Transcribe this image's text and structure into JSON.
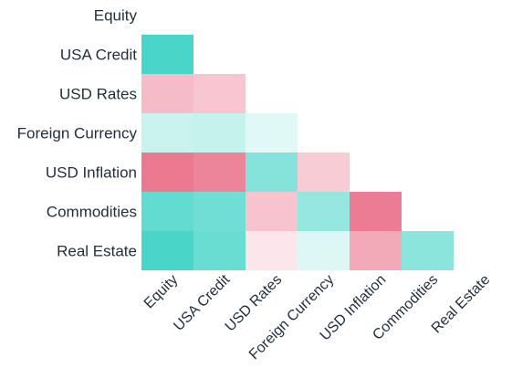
{
  "chart_data": {
    "type": "heatmap",
    "title": "",
    "xlabel": "",
    "ylabel": "",
    "rows": [
      "Equity",
      "USA Credit",
      "USD Rates",
      "Foreign Currency",
      "USD Inflation",
      "Commodities",
      "Real Estate"
    ],
    "columns": [
      "Equity",
      "USA Credit",
      "USD Rates",
      "Foreign Currency",
      "USD Inflation",
      "Commodities",
      "Real Estate"
    ],
    "layout": "lower-triangle",
    "color_scale": {
      "positive": "#40d3c6",
      "negative": "#e96a84",
      "neutral": "#ffffff",
      "vmin": -1,
      "vmax": 1
    },
    "cells": [
      [],
      [
        0.95
      ],
      [
        -0.45,
        -0.38
      ],
      [
        0.28,
        0.3,
        0.16
      ],
      [
        -0.9,
        -0.82,
        0.64,
        -0.34
      ],
      [
        0.82,
        0.75,
        -0.4,
        0.55,
        -0.88
      ],
      [
        0.95,
        0.78,
        -0.16,
        0.18,
        -0.58,
        0.6
      ]
    ]
  }
}
